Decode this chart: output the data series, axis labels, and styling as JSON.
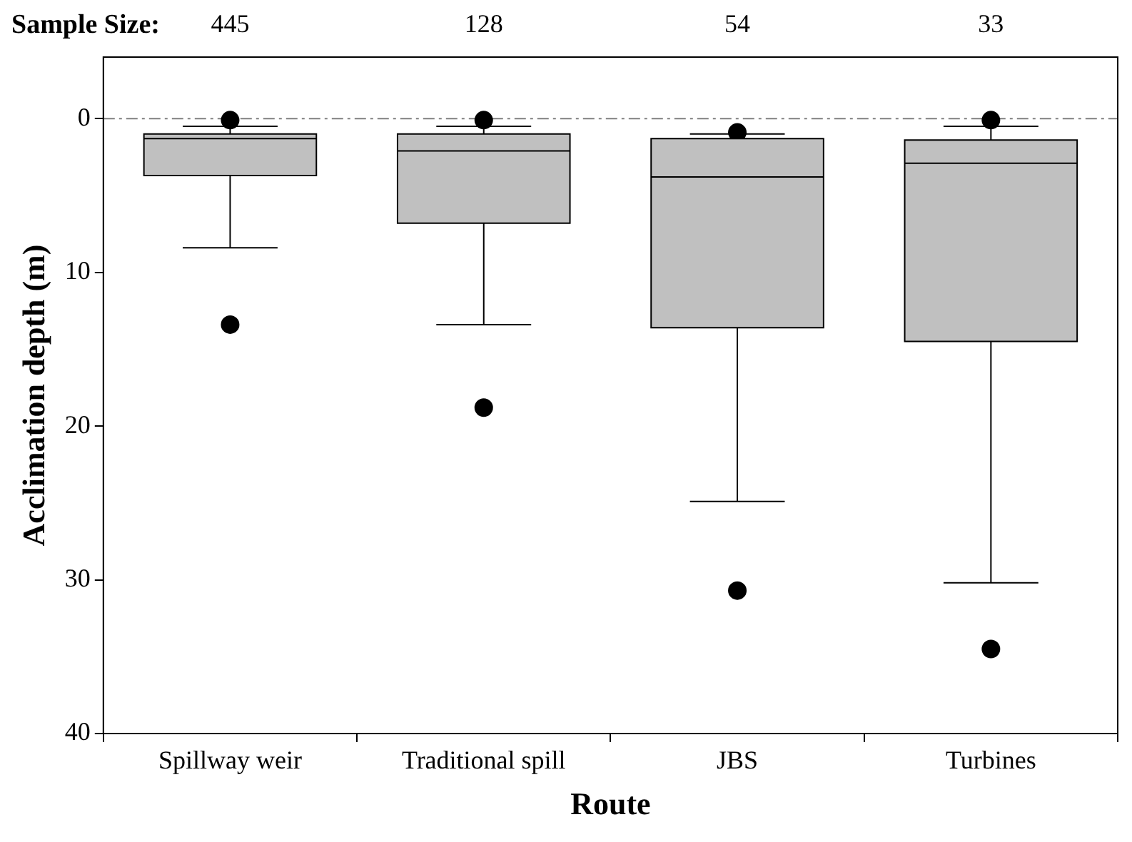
{
  "chart_data": {
    "type": "box",
    "xlabel": "Route",
    "ylabel": "Acclimation depth (m)",
    "categories": [
      "Spillway weir",
      "Traditional spill",
      "JBS",
      "Turbines"
    ],
    "boxes": [
      {
        "low": 8.4,
        "q1": 1.0,
        "median": 1.3,
        "q3": 3.7,
        "high": 0.5,
        "outliers": [
          0.1,
          13.4
        ]
      },
      {
        "low": 13.4,
        "q1": 1.0,
        "median": 2.1,
        "q3": 6.8,
        "high": 0.5,
        "outliers": [
          0.1,
          18.8
        ]
      },
      {
        "low": 24.9,
        "q1": 1.3,
        "median": 3.8,
        "q3": 13.6,
        "high": 1.0,
        "outliers": [
          0.9,
          30.7
        ]
      },
      {
        "low": 30.2,
        "q1": 1.4,
        "median": 2.9,
        "q3": 14.5,
        "high": 0.5,
        "outliers": [
          0.1,
          34.5
        ]
      }
    ],
    "color": "#c0c0c0",
    "ylim": [
      40,
      -4
    ],
    "yticks": [
      0,
      10,
      20,
      30,
      40
    ],
    "grid": false,
    "legend": false,
    "ref_lines": [
      {
        "axis": "y",
        "value": 0,
        "line_style": "dashdot",
        "color": "#808080"
      }
    ],
    "annotations": [
      "Sample Size:",
      "445",
      "128",
      "54",
      "33"
    ]
  }
}
